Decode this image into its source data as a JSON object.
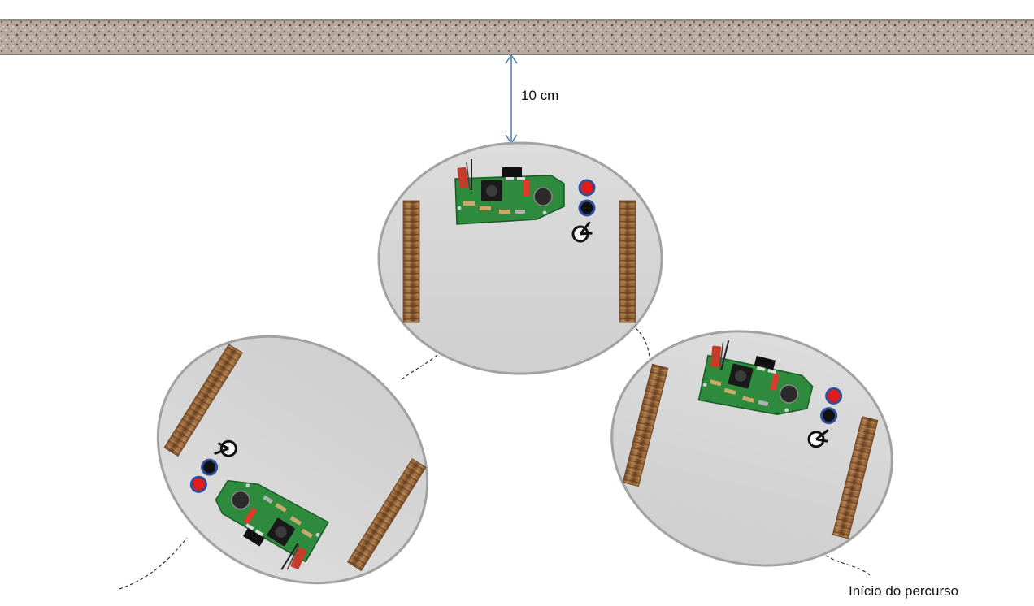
{
  "wall": {
    "label": ""
  },
  "distance": {
    "label": "10 cm"
  },
  "path": {
    "start_label": "Início do percurso"
  },
  "colors": {
    "wall": "#b9aaa0",
    "robot_body": "#d5d5d5",
    "robot_edge": "#9e9e9e",
    "board": "#2f8a3f",
    "wood": "#8a5a2e",
    "led_red": "#e41b1b",
    "led_black": "#111111",
    "led_ring": "#2f4f9a",
    "arrow": "#4a78b5"
  },
  "icons": {
    "sensor": "light-sensor-icon",
    "led": "led-icon",
    "board": "circuit-board-icon",
    "wheel": "wheel-icon"
  }
}
